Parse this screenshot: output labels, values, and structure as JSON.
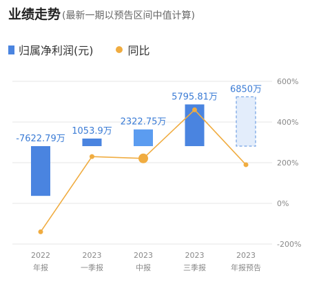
{
  "header": {
    "title": "业绩走势",
    "subtitle": "(最新一期以预告区间中值计算)"
  },
  "legend": {
    "bar_label": "归属净利润(元)",
    "line_label": "同比"
  },
  "colors": {
    "bar": "#4a84e0",
    "bar_light": "#5b9cf0",
    "forecast_fill": "#e3edfb",
    "forecast_stroke": "#6f9fe3",
    "line": "#f0ac40",
    "label": "#3a7bd5",
    "grid": "#e6e6e6",
    "axis_text": "#888888"
  },
  "chart_data": {
    "type": "bar",
    "categories": [
      [
        "2022",
        "年报"
      ],
      [
        "2023",
        "一季报"
      ],
      [
        "2023",
        "中报"
      ],
      [
        "2023",
        "三季报"
      ],
      [
        "2023",
        "年报预告"
      ]
    ],
    "series": [
      {
        "name": "归属净利润(元)",
        "values": [
          -7622.79,
          1053.9,
          2322.75,
          5795.81,
          6850
        ],
        "labels": [
          "-7622.79万",
          "1053.9万",
          "2322.75万",
          "5795.81万",
          "6850万"
        ],
        "forecast": [
          false,
          false,
          false,
          false,
          true
        ]
      },
      {
        "name": "同比",
        "type": "line",
        "values": [
          -140,
          230,
          221,
          460,
          190
        ]
      }
    ],
    "y_left_range": [
      -9000,
      9000
    ],
    "y_right": {
      "ticks": [
        600,
        400,
        200,
        0,
        -200
      ],
      "tick_labels": [
        "600%",
        "400%",
        "200%",
        "0%",
        "-200%"
      ],
      "range": [
        -200,
        600
      ]
    },
    "highlight_index": 2
  }
}
